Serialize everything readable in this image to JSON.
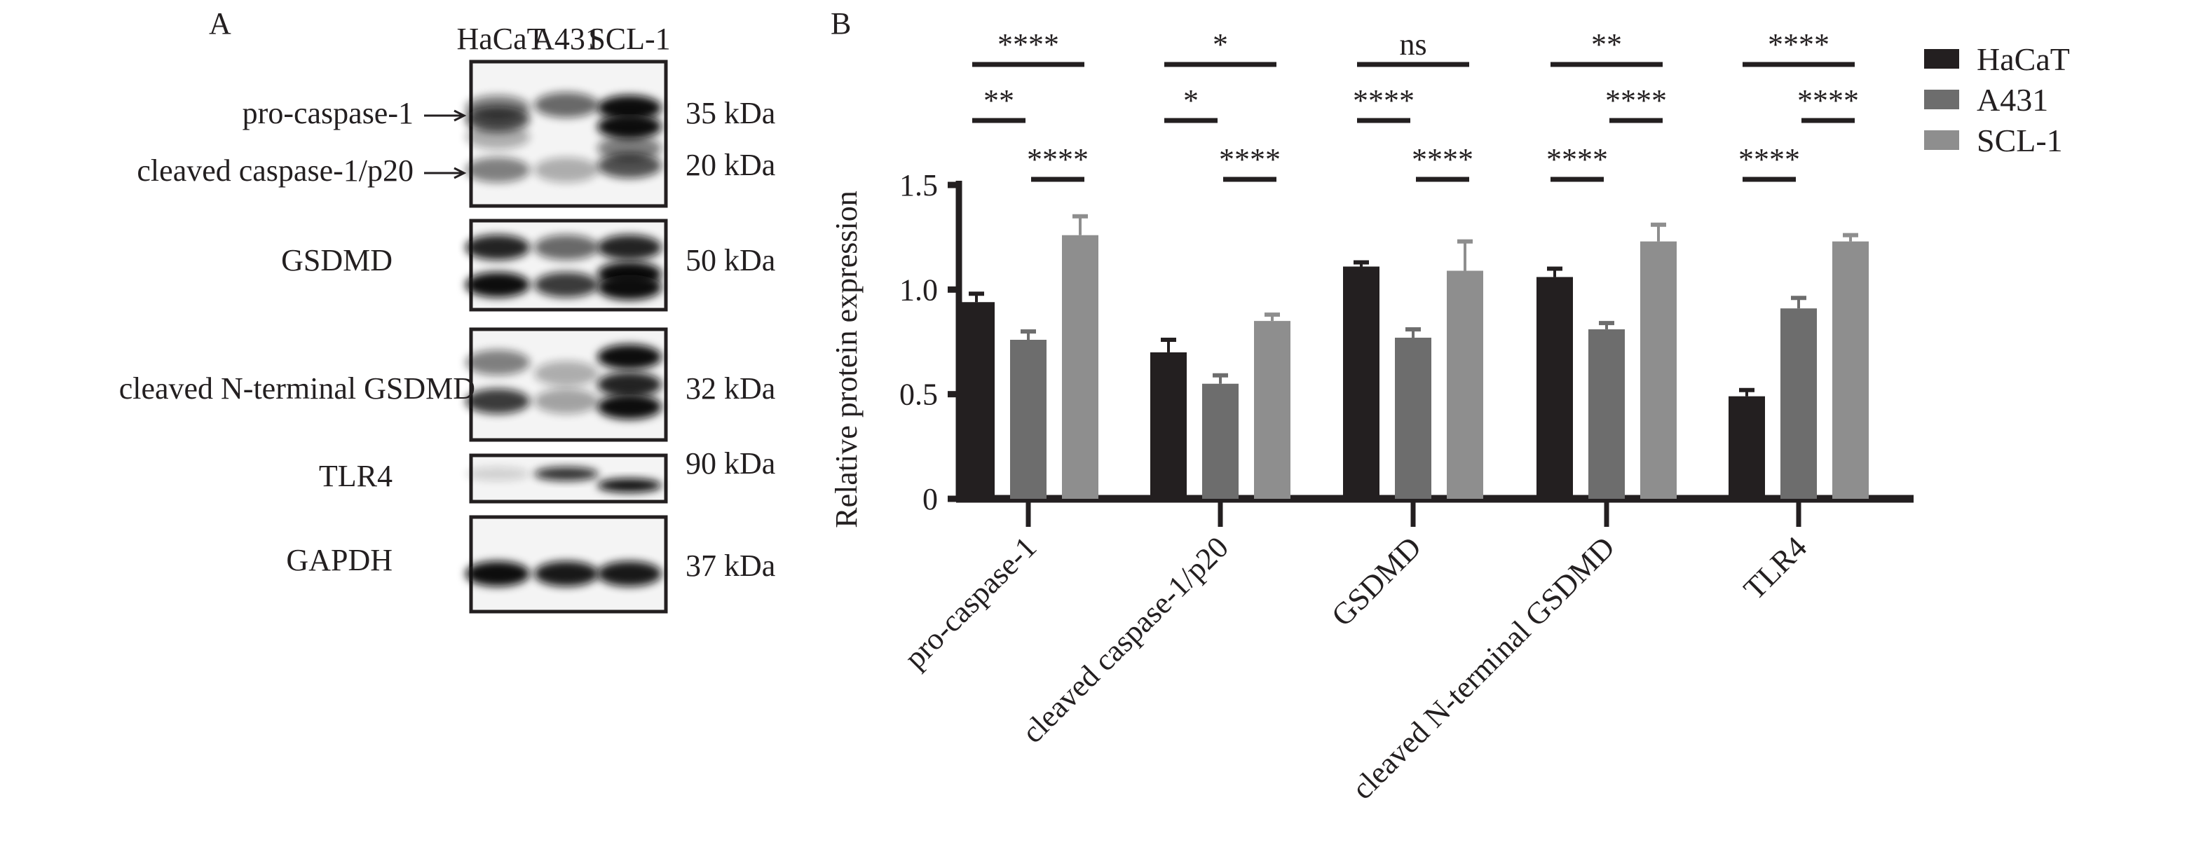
{
  "panel_a": {
    "label": "A",
    "lanes": [
      "HaCaT",
      "A431",
      "SCL-1"
    ],
    "blots": [
      {
        "labels": [
          "pro-caspase-1",
          "cleaved caspase-1/p20"
        ],
        "kda": [
          "35 kDa",
          "20 kDa"
        ],
        "arrows": true
      },
      {
        "labels": [
          "GSDMD"
        ],
        "kda": [
          "50 kDa"
        ]
      },
      {
        "labels": [
          "cleaved N-terminal GSDMD"
        ],
        "kda": [
          "32 kDa"
        ]
      },
      {
        "labels": [
          "TLR4"
        ],
        "kda": [
          "90 kDa"
        ]
      },
      {
        "labels": [
          "GAPDH"
        ],
        "kda": [
          "37 kDa"
        ]
      }
    ]
  },
  "chart_data": {
    "panel_label": "B",
    "type": "bar",
    "ylabel": "Relative protein expression",
    "xlabel": "",
    "ylim": [
      0,
      1.5
    ],
    "yticks": [
      0,
      0.5,
      1.0,
      1.5
    ],
    "ytick_labels": [
      "0",
      "0.5",
      "1.0",
      "1.5"
    ],
    "grid": false,
    "legend_position": "top-right",
    "categories": [
      "pro-caspase-1",
      "cleaved caspase-1/p20",
      "GSDMD",
      "cleaved N-terminal GSDMD",
      "TLR4"
    ],
    "series": [
      {
        "name": "HaCaT",
        "color": "#231f20",
        "values": [
          0.94,
          0.7,
          1.11,
          1.06,
          0.49
        ],
        "error": [
          0.04,
          0.06,
          0.02,
          0.04,
          0.03
        ]
      },
      {
        "name": "A431",
        "color": "#6d6d6d",
        "values": [
          0.76,
          0.55,
          0.77,
          0.81,
          0.91
        ],
        "error": [
          0.04,
          0.04,
          0.04,
          0.03,
          0.05
        ]
      },
      {
        "name": "SCL-1",
        "color": "#8e8e8e",
        "values": [
          1.26,
          0.85,
          1.09,
          1.23,
          1.23
        ],
        "error": [
          0.09,
          0.03,
          0.14,
          0.08,
          0.03
        ]
      }
    ],
    "significance": [
      {
        "HaCaT_vs_SCL-1": "****",
        "HaCaT_vs_A431": "**",
        "A431_vs_SCL-1": "****"
      },
      {
        "HaCaT_vs_SCL-1": "*",
        "HaCaT_vs_A431": "*",
        "A431_vs_SCL-1": "****"
      },
      {
        "HaCaT_vs_SCL-1": "ns",
        "HaCaT_vs_A431": "****",
        "A431_vs_SCL-1": "****"
      },
      {
        "HaCaT_vs_SCL-1": "**",
        "HaCaT_vs_A431": "****",
        "A431_vs_SCL-1": "****"
      },
      {
        "HaCaT_vs_SCL-1": "****",
        "HaCaT_vs_A431": "****",
        "A431_vs_SCL-1": "****"
      }
    ]
  }
}
